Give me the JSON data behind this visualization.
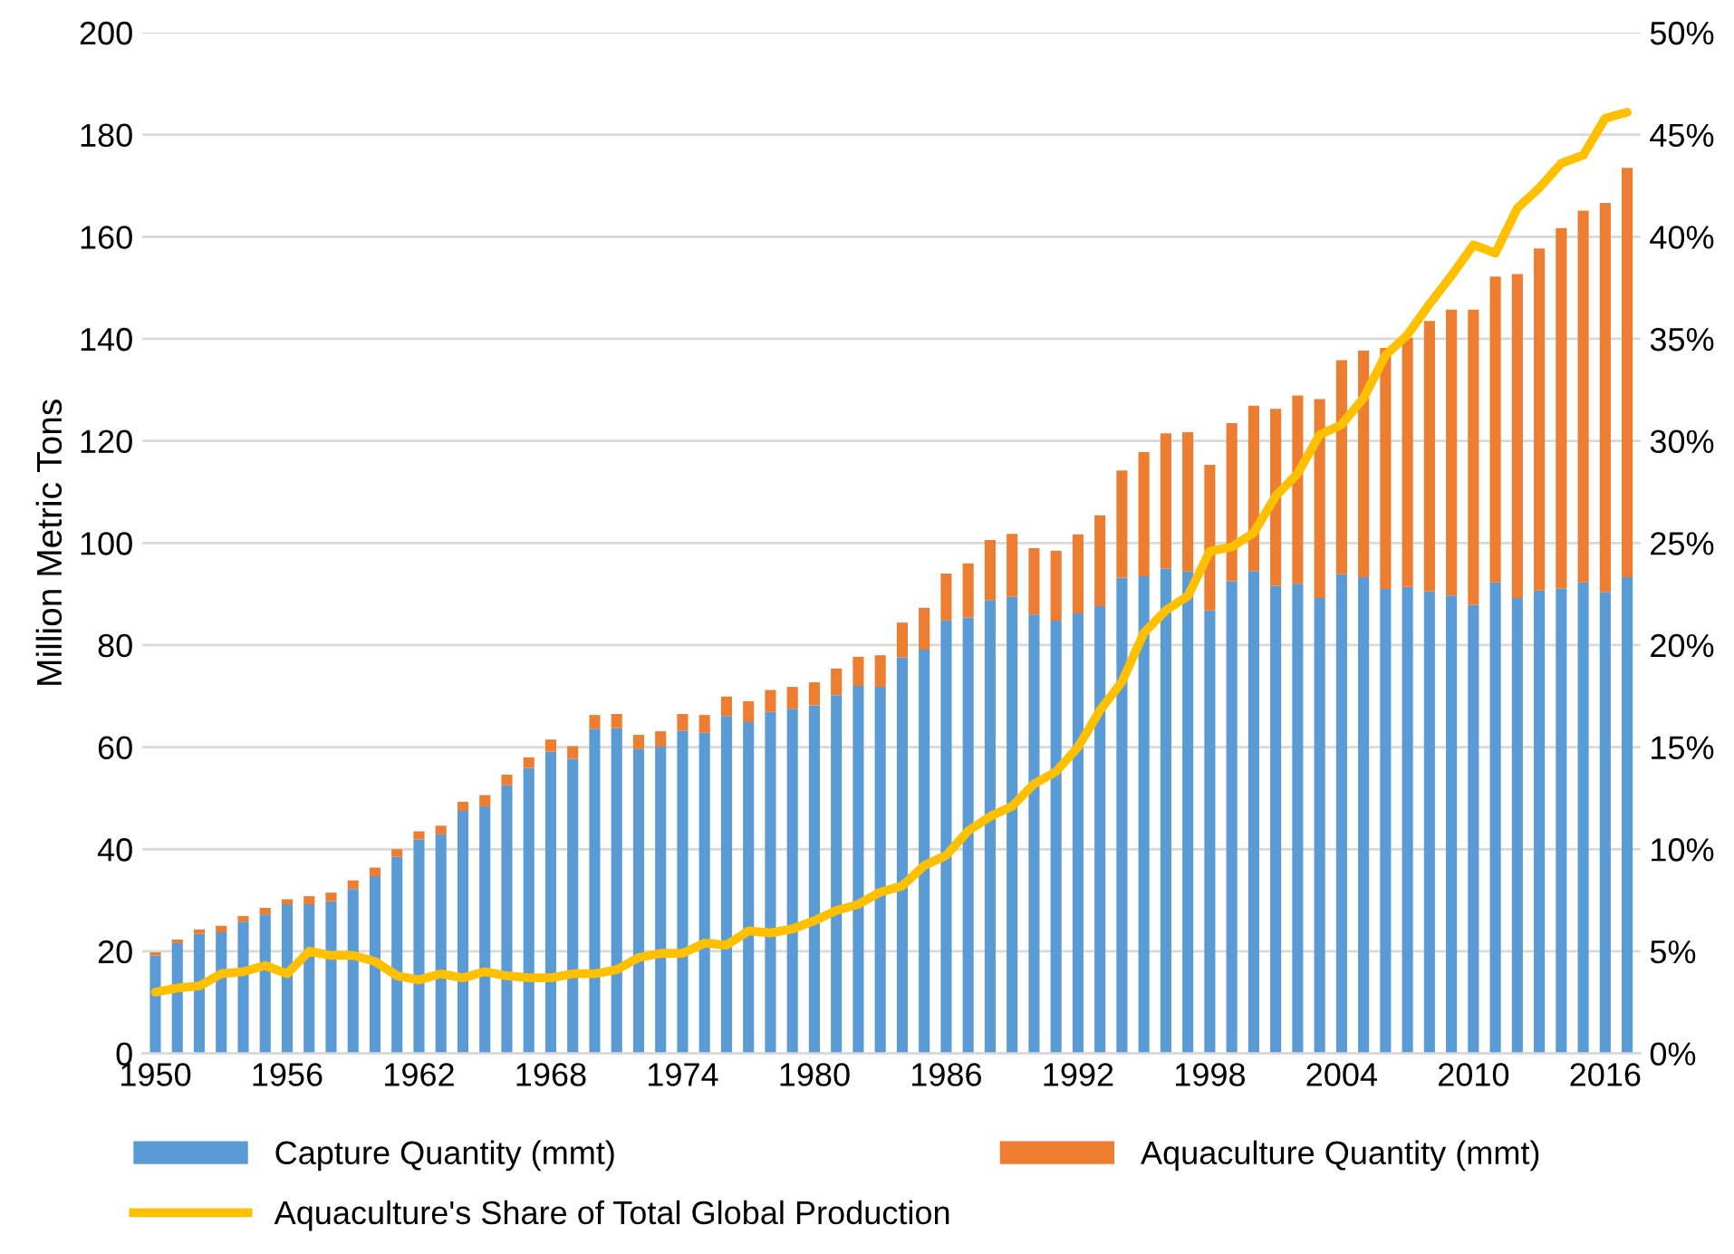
{
  "chart_data": {
    "type": "bar",
    "stacked": true,
    "ylabel": "Million Metric Tons",
    "categories": [
      "1950",
      null,
      null,
      null,
      null,
      null,
      "1956",
      null,
      null,
      null,
      null,
      null,
      "1962",
      null,
      null,
      null,
      null,
      null,
      "1968",
      null,
      null,
      null,
      null,
      null,
      "1974",
      null,
      null,
      null,
      null,
      null,
      "1980",
      null,
      null,
      null,
      null,
      null,
      "1986",
      null,
      null,
      null,
      null,
      null,
      "1992",
      null,
      null,
      null,
      null,
      null,
      "1998",
      null,
      null,
      null,
      null,
      null,
      "2004",
      null,
      null,
      null,
      null,
      null,
      "2010",
      null,
      null,
      null,
      null,
      null,
      "2016",
      null
    ],
    "series": [
      {
        "name": "Capture Quantity (mmt)",
        "color": "#5b9bd5",
        "values": [
          19.2,
          21.6,
          23.4,
          23.7,
          25.8,
          27.2,
          29.2,
          29.2,
          29.8,
          32.2,
          34.7,
          38.5,
          41.9,
          42.9,
          47.5,
          48.4,
          52.5,
          55.9,
          59.1,
          57.7,
          63.6,
          63.7,
          59.6,
          60.1,
          63.2,
          62.8,
          66.1,
          64.9,
          66.9,
          67.5,
          68.2,
          70.2,
          72.0,
          71.8,
          77.6,
          79.1,
          84.8,
          85.4,
          88.8,
          89.5,
          86.0,
          84.8,
          86.2,
          87.6,
          93.2,
          93.5,
          95.0,
          94.4,
          86.8,
          92.5,
          94.5,
          91.6,
          92.0,
          89.2,
          93.9,
          93.3,
          91.0,
          91.4,
          90.5,
          89.7,
          87.9,
          92.3,
          89.2,
          90.7,
          91.1,
          92.3,
          90.4,
          93.3
        ]
      },
      {
        "name": "Aquaculture Quantity (mmt)",
        "color": "#ed7d31",
        "values": [
          0.6,
          0.7,
          0.9,
          1.3,
          1.1,
          1.3,
          1.0,
          1.6,
          1.7,
          1.7,
          1.7,
          1.5,
          1.6,
          1.7,
          1.8,
          2.2,
          2.1,
          2.1,
          2.4,
          2.5,
          2.7,
          2.8,
          2.8,
          3.0,
          3.3,
          3.5,
          3.8,
          4.1,
          4.3,
          4.3,
          4.5,
          5.2,
          5.7,
          6.2,
          6.8,
          8.2,
          9.2,
          10.6,
          11.8,
          12.3,
          13.0,
          13.7,
          15.5,
          17.8,
          21.0,
          24.3,
          26.5,
          27.3,
          28.5,
          31.0,
          32.4,
          34.7,
          36.9,
          39.0,
          41.9,
          44.4,
          47.2,
          48.8,
          53.0,
          56.0,
          57.8,
          59.9,
          63.5,
          67.0,
          70.6,
          72.8,
          76.2,
          80.2
        ]
      },
      {
        "name": "Aquaculture's Share of Total Global Production",
        "type": "line",
        "axis": "y2",
        "color": "#ffc000",
        "values": [
          3.0,
          3.2,
          3.3,
          3.9,
          4.0,
          4.3,
          3.9,
          5.0,
          4.8,
          4.8,
          4.5,
          3.8,
          3.6,
          3.9,
          3.7,
          4.0,
          3.8,
          3.7,
          3.7,
          3.9,
          3.9,
          4.1,
          4.7,
          4.9,
          4.9,
          5.4,
          5.3,
          6.0,
          5.9,
          6.1,
          6.5,
          7.0,
          7.3,
          7.9,
          8.2,
          9.2,
          9.7,
          10.9,
          11.6,
          12.1,
          13.2,
          13.8,
          15.0,
          16.8,
          18.2,
          20.6,
          21.7,
          22.4,
          24.6,
          24.8,
          25.5,
          27.3,
          28.4,
          30.3,
          30.8,
          32.1,
          34.2,
          35.2,
          36.7,
          38.1,
          39.6,
          39.2,
          41.4,
          42.4,
          43.6,
          44.0,
          45.8,
          46.1
        ]
      }
    ],
    "ylim": [
      0,
      200
    ],
    "yticks": [
      0,
      20,
      40,
      60,
      80,
      100,
      120,
      140,
      160,
      180,
      200
    ],
    "y2lim": [
      0,
      50
    ],
    "y2ticks": [
      {
        "value": 0,
        "label": "0%"
      },
      {
        "value": 5,
        "label": "5%"
      },
      {
        "value": 10,
        "label": "10%"
      },
      {
        "value": 15,
        "label": "15%"
      },
      {
        "value": 20,
        "label": "20%"
      },
      {
        "value": 25,
        "label": "25%"
      },
      {
        "value": 30,
        "label": "30%"
      },
      {
        "value": 35,
        "label": "35%"
      },
      {
        "value": 40,
        "label": "40%"
      },
      {
        "value": 45,
        "label": "45%"
      },
      {
        "value": 50,
        "label": "50%"
      }
    ],
    "grid": "y",
    "legend": "bottom"
  }
}
